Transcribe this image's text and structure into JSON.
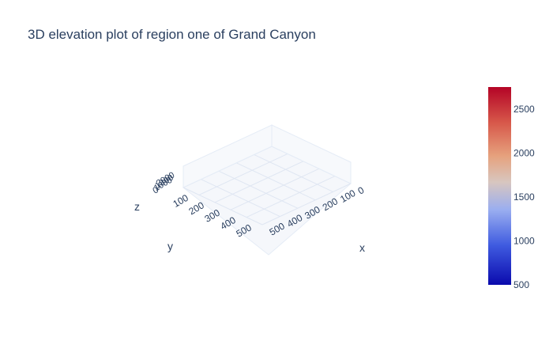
{
  "chart_data": {
    "type": "surface",
    "title": "3D elevation plot of region one of Grand Canyon",
    "scene": {
      "xaxis": {
        "label": "x",
        "ticks": [
          0,
          100,
          200,
          300,
          400,
          500
        ]
      },
      "yaxis": {
        "label": "y",
        "ticks": [
          100,
          200,
          300,
          400,
          500
        ]
      },
      "zaxis": {
        "label": "z",
        "ticks": [
          0,
          1000,
          1800,
          2000
        ]
      },
      "grid": true
    },
    "colorscale": {
      "name": "coolwarm",
      "stops": [
        [
          0.0,
          "#0a0aad"
        ],
        [
          0.2,
          "#3f5be0"
        ],
        [
          0.38,
          "#9aaef0"
        ],
        [
          0.52,
          "#d8c6bf"
        ],
        [
          0.65,
          "#e6a27e"
        ],
        [
          0.82,
          "#d7584a"
        ],
        [
          1.0,
          "#b40426"
        ]
      ]
    },
    "colorbar": {
      "ticks": [
        500,
        1000,
        1500,
        2000,
        2500
      ],
      "range": [
        500,
        2750
      ]
    },
    "z_range": [
      500,
      2750
    ]
  }
}
